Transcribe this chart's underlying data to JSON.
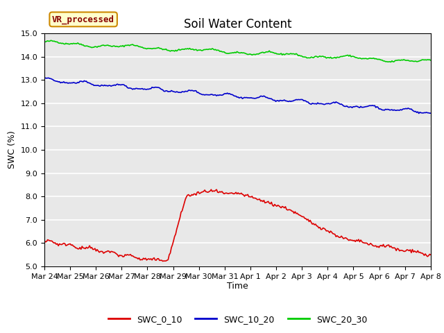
{
  "title": "Soil Water Content",
  "xlabel": "Time",
  "ylabel": "SWC (%)",
  "ylim": [
    5.0,
    15.0
  ],
  "yticks": [
    5.0,
    6.0,
    7.0,
    8.0,
    9.0,
    10.0,
    11.0,
    12.0,
    13.0,
    14.0,
    15.0
  ],
  "xtick_labels": [
    "Mar 24",
    "Mar 25",
    "Mar 26",
    "Mar 27",
    "Mar 28",
    "Mar 29",
    "Mar 30",
    "Mar 31",
    "Apr 1",
    "Apr 2",
    "Apr 3",
    "Apr 4",
    "Apr 5",
    "Apr 6",
    "Apr 7",
    "Apr 8"
  ],
  "colors": {
    "SWC_0_10": "#dd0000",
    "SWC_10_20": "#0000cc",
    "SWC_20_30": "#00cc00"
  },
  "plot_bg": "#e8e8e8",
  "fig_bg": "#ffffff",
  "annotation_text": "VR_processed",
  "annotation_color": "#880000",
  "annotation_bg": "#ffffcc",
  "annotation_border": "#cc8800",
  "title_fontsize": 12,
  "tick_fontsize": 8,
  "label_fontsize": 9,
  "legend_fontsize": 9
}
